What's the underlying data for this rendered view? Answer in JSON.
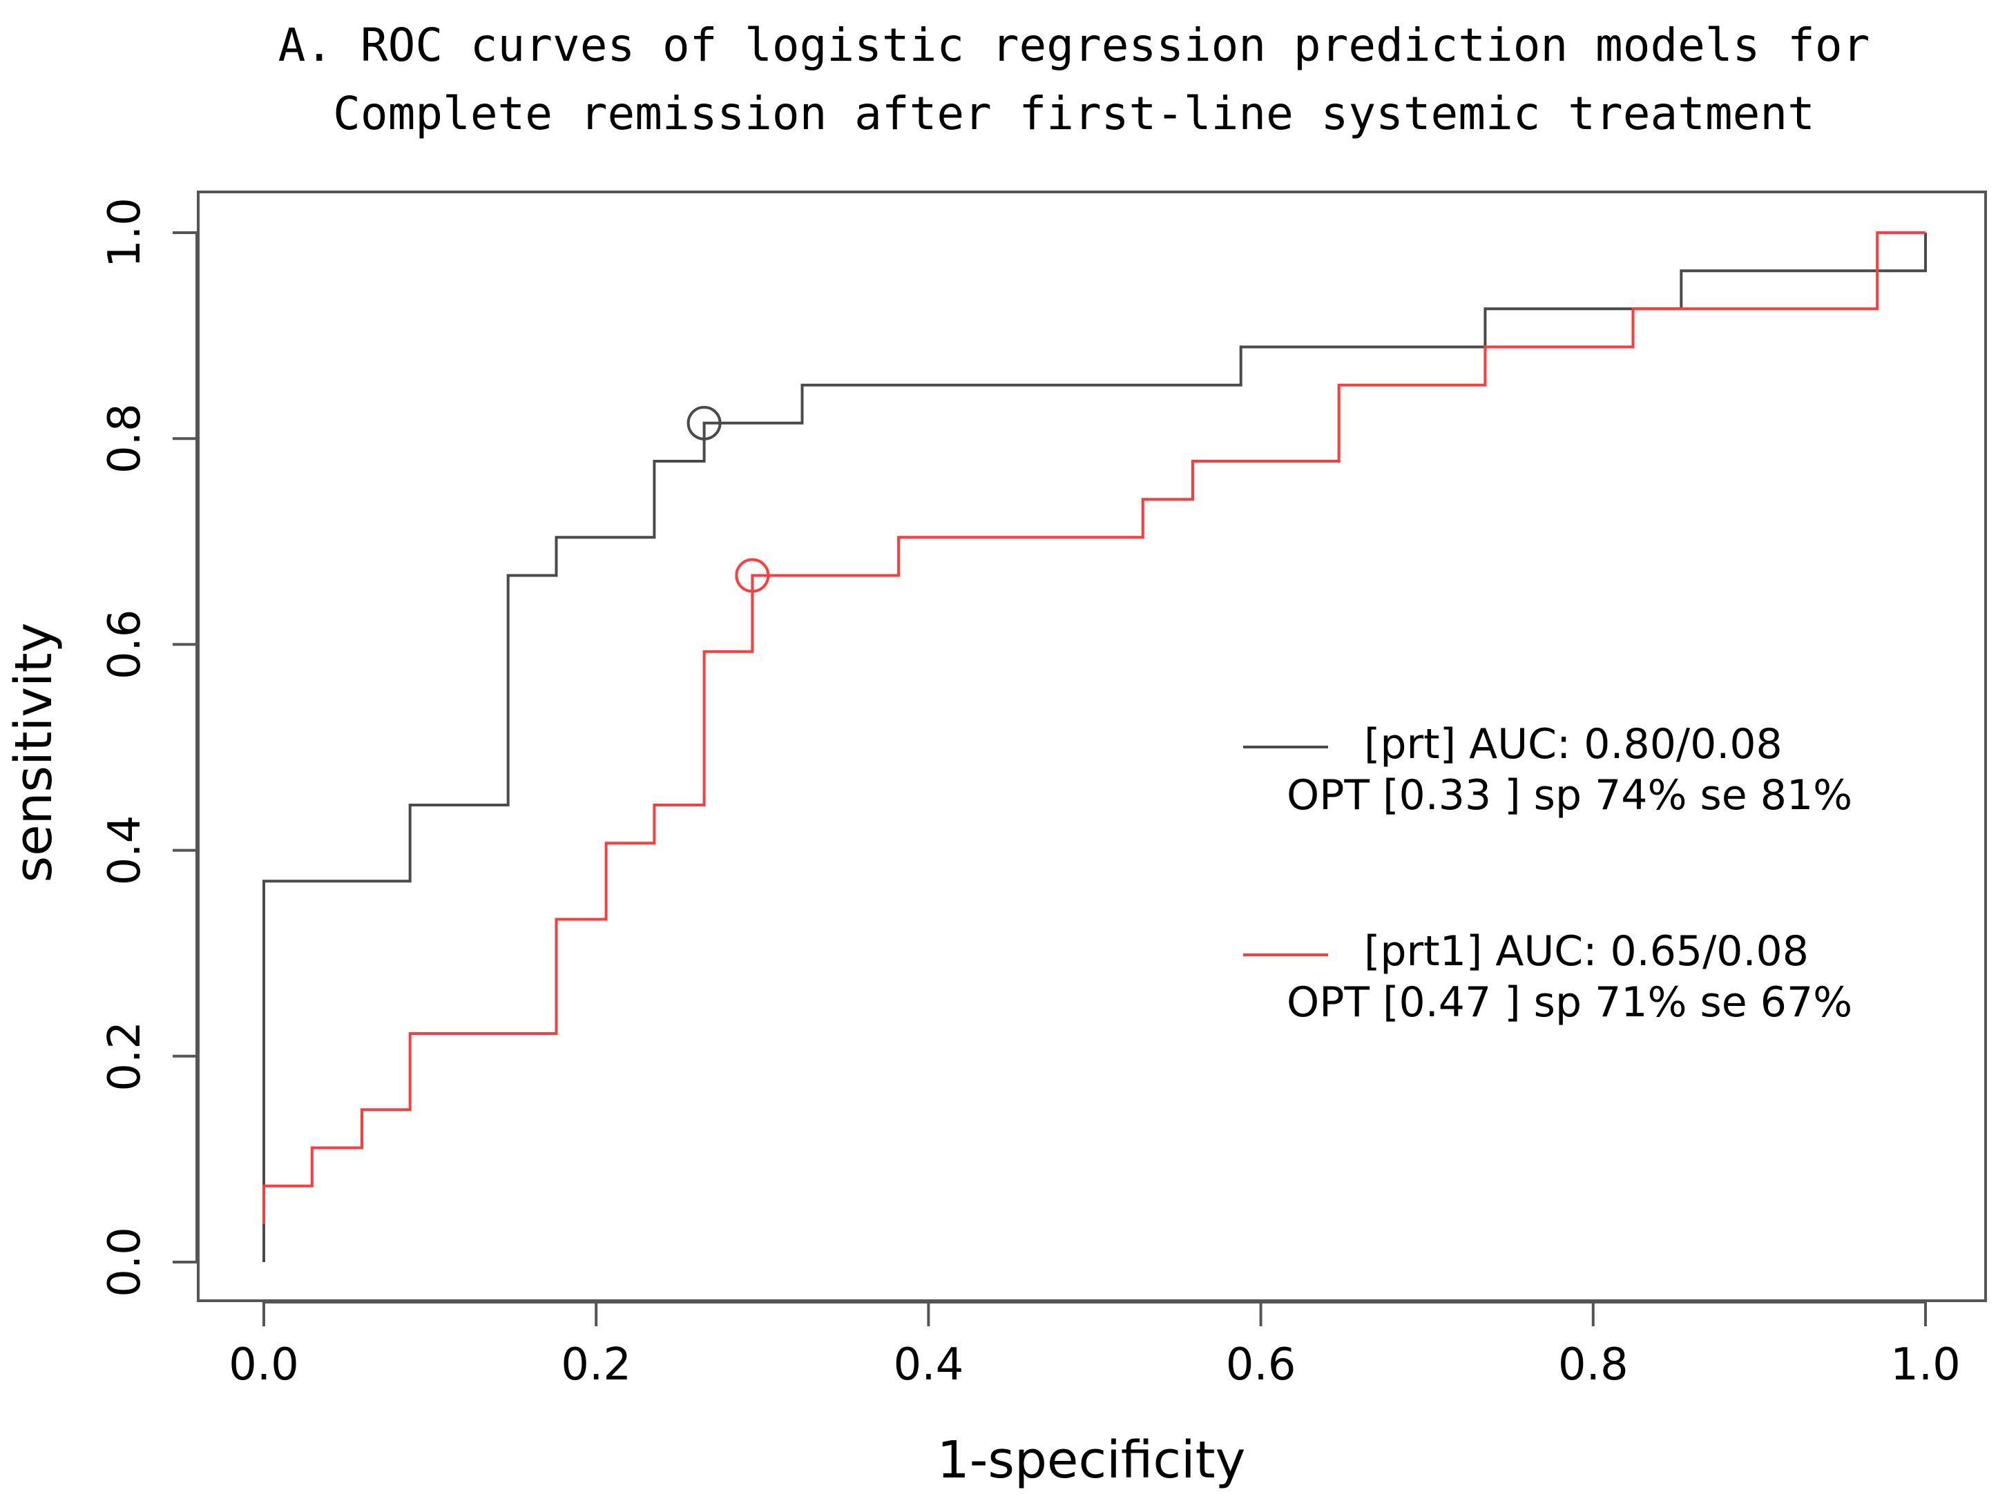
{
  "chart_data": {
    "type": "line",
    "title_lines": [
      "A. ROC curves of logistic regression prediction models for",
      "Complete remission after first-line systemic treatment"
    ],
    "xlabel": "1-specificity",
    "ylabel": "sensitivity",
    "xlim": [
      0.0,
      1.0
    ],
    "ylim": [
      0.0,
      1.0
    ],
    "xticks": [
      "0.0",
      "0.2",
      "0.4",
      "0.6",
      "0.8",
      "1.0"
    ],
    "yticks": [
      "0.0",
      "0.2",
      "0.4",
      "0.6",
      "0.8",
      "1.0"
    ],
    "grid": false,
    "legend_position": "right-center",
    "series": [
      {
        "name": "[prt]",
        "legend_line1": "[prt] AUC: 0.80/0.08",
        "legend_line2": "OPT [0.33 ] sp 74% se 81%",
        "color": "#4a4a4a",
        "x": [
          0.0,
          0.0,
          0.088,
          0.088,
          0.147,
          0.147,
          0.176,
          0.176,
          0.235,
          0.235,
          0.265,
          0.265,
          0.324,
          0.324,
          0.588,
          0.588,
          0.735,
          0.735,
          0.853,
          0.853,
          1.0,
          1.0
        ],
        "y": [
          0.0,
          0.37,
          0.37,
          0.444,
          0.444,
          0.667,
          0.667,
          0.704,
          0.704,
          0.778,
          0.778,
          0.815,
          0.815,
          0.852,
          0.852,
          0.889,
          0.889,
          0.926,
          0.926,
          0.963,
          0.963,
          1.0
        ],
        "optimal_point": [
          0.265,
          0.815
        ]
      },
      {
        "name": "[prt1]",
        "legend_line1": "[prt1] AUC: 0.65/0.08",
        "legend_line2": "OPT [0.47 ] sp 71% se 67%",
        "color": "#ff3b3b",
        "x": [
          0.0,
          0.0,
          0.029,
          0.029,
          0.059,
          0.059,
          0.088,
          0.088,
          0.176,
          0.176,
          0.206,
          0.206,
          0.235,
          0.235,
          0.265,
          0.265,
          0.294,
          0.294,
          0.382,
          0.382,
          0.529,
          0.529,
          0.559,
          0.559,
          0.647,
          0.647,
          0.735,
          0.735,
          0.824,
          0.824,
          0.971,
          0.971,
          1.0
        ],
        "y": [
          0.037,
          0.074,
          0.074,
          0.111,
          0.111,
          0.148,
          0.148,
          0.222,
          0.222,
          0.333,
          0.333,
          0.407,
          0.407,
          0.444,
          0.444,
          0.593,
          0.593,
          0.667,
          0.667,
          0.704,
          0.704,
          0.741,
          0.741,
          0.778,
          0.778,
          0.852,
          0.852,
          0.889,
          0.889,
          0.926,
          0.926,
          1.0,
          1.0
        ],
        "optimal_point": [
          0.294,
          0.667
        ]
      }
    ]
  }
}
